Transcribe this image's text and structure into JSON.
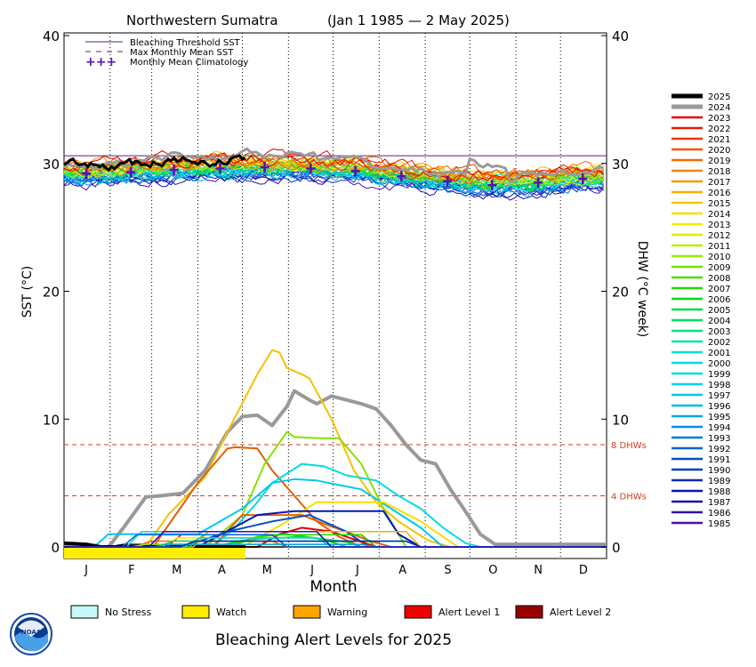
{
  "header": {
    "region": "Northwestern Sumatra",
    "date_range": "(Jan 1 1985 — 2 May 2025)"
  },
  "legend_top": [
    {
      "label": "Bleaching Threshold SST",
      "color": "#5b1f7a",
      "style": "solid"
    },
    {
      "label": "Max Monthly Mean SST",
      "color": "#5b1f7a",
      "style": "dashed"
    },
    {
      "label": "Monthly Mean Climatology",
      "color": "#5a0fb4",
      "style": "plus"
    }
  ],
  "alert_legend": {
    "items": [
      {
        "label": "No Stress",
        "color": "#c8f7f7"
      },
      {
        "label": "Watch",
        "color": "#ffee00"
      },
      {
        "label": "Warning",
        "color": "#ffa500"
      },
      {
        "label": "Alert Level 1",
        "color": "#ee0000"
      },
      {
        "label": "Alert Level 2",
        "color": "#990000"
      }
    ],
    "title": "Bleaching Alert Levels for 2025"
  },
  "logo_text": "NOAA",
  "chart_data": {
    "type": "line",
    "xlabel": "Month",
    "ylabel_left": "SST (°C)",
    "ylabel_right": "DHW (°C week)",
    "x_ticks": [
      "J",
      "F",
      "M",
      "A",
      "M",
      "J",
      "J",
      "A",
      "S",
      "O",
      "N",
      "D"
    ],
    "y_ticks": [
      "0",
      "10",
      "20",
      "30",
      "40"
    ],
    "y_ticks_right": [
      "0",
      "10",
      "20",
      "30",
      "40"
    ],
    "ylim": [
      0,
      40
    ],
    "xlim_days": [
      0,
      365
    ],
    "grid": "vertical dotted at month boundaries",
    "bleaching_threshold_sst": 30.6,
    "dhw_reference_lines": [
      {
        "value": 8,
        "label": "8 DHWs",
        "color": "#d04020"
      },
      {
        "value": 4,
        "label": "4 DHWs",
        "color": "#d04020"
      }
    ],
    "climatology": {
      "days": [
        15,
        45,
        74,
        105,
        135,
        166,
        196,
        227,
        258,
        288,
        319,
        349
      ],
      "values": [
        29.2,
        29.3,
        29.5,
        29.6,
        29.7,
        29.6,
        29.4,
        29.0,
        28.6,
        28.3,
        28.5,
        28.8
      ]
    },
    "years": [
      {
        "name": "2025",
        "color": "#000000"
      },
      {
        "name": "2024",
        "color": "#9a9a9a"
      },
      {
        "name": "2023",
        "color": "#e00000"
      },
      {
        "name": "2022",
        "color": "#e81a00"
      },
      {
        "name": "2021",
        "color": "#ee3300"
      },
      {
        "name": "2020",
        "color": "#f25500"
      },
      {
        "name": "2019",
        "color": "#f46a00"
      },
      {
        "name": "2018",
        "color": "#f58200"
      },
      {
        "name": "2017",
        "color": "#f59a00"
      },
      {
        "name": "2016",
        "color": "#f5b000"
      },
      {
        "name": "2015",
        "color": "#f5c800"
      },
      {
        "name": "2014",
        "color": "#f5e000"
      },
      {
        "name": "2013",
        "color": "#eef000"
      },
      {
        "name": "2012",
        "color": "#d8f000"
      },
      {
        "name": "2011",
        "color": "#b8ee00"
      },
      {
        "name": "2010",
        "color": "#98ea00"
      },
      {
        "name": "2009",
        "color": "#72e400"
      },
      {
        "name": "2008",
        "color": "#4ade00"
      },
      {
        "name": "2007",
        "color": "#22d800"
      },
      {
        "name": "2006",
        "color": "#00d81a"
      },
      {
        "name": "2005",
        "color": "#00dc44"
      },
      {
        "name": "2004",
        "color": "#00e064"
      },
      {
        "name": "2003",
        "color": "#00e288"
      },
      {
        "name": "2002",
        "color": "#00e4a6"
      },
      {
        "name": "2001",
        "color": "#00e4c2"
      },
      {
        "name": "2000",
        "color": "#00e0d8"
      },
      {
        "name": "1999",
        "color": "#00dae6"
      },
      {
        "name": "1998",
        "color": "#00d2ee"
      },
      {
        "name": "1997",
        "color": "#00c6f0"
      },
      {
        "name": "1996",
        "color": "#00b6f0"
      },
      {
        "name": "1995",
        "color": "#00a4ec"
      },
      {
        "name": "1994",
        "color": "#0090e6"
      },
      {
        "name": "1993",
        "color": "#007ade"
      },
      {
        "name": "1992",
        "color": "#0064d6"
      },
      {
        "name": "1991",
        "color": "#004ece"
      },
      {
        "name": "1990",
        "color": "#003cc6"
      },
      {
        "name": "1989",
        "color": "#002abe"
      },
      {
        "name": "1988",
        "color": "#0018b6"
      },
      {
        "name": "1987",
        "color": "#1a10b0"
      },
      {
        "name": "1986",
        "color": "#3010b0"
      },
      {
        "name": "1985",
        "color": "#4a10b4"
      }
    ],
    "dhw_series": [
      {
        "name": "2024",
        "color": "#999999",
        "width": 4,
        "days": [
          0,
          20,
          30,
          40,
          55,
          65,
          80,
          95,
          100,
          110,
          120,
          130,
          140,
          150,
          155,
          165,
          170,
          180,
          190,
          200,
          210,
          220,
          230,
          240,
          250,
          260,
          270,
          280,
          290,
          300,
          365
        ],
        "values": [
          0,
          0,
          0,
          1.5,
          3.9,
          4,
          4.2,
          6,
          7,
          9,
          10.2,
          10.3,
          9.5,
          11,
          12.2,
          11.5,
          11.2,
          11.8,
          11.5,
          11.2,
          10.8,
          9.5,
          8,
          6.8,
          6.5,
          4.5,
          2.8,
          1,
          0.2,
          0.2,
          0.2
        ]
      },
      {
        "name": "2016",
        "color": "#f5c000",
        "width": 2,
        "days": [
          0,
          55,
          70,
          95,
          110,
          130,
          140,
          145,
          150,
          160,
          165,
          180,
          195,
          210,
          225,
          245,
          260
        ],
        "values": [
          0,
          0,
          2.5,
          5.5,
          9,
          13.5,
          15.4,
          15.2,
          14,
          13.5,
          13.2,
          10,
          6,
          3.5,
          2,
          0.5,
          0
        ]
      },
      {
        "name": "2019",
        "color": "#e06000",
        "width": 2,
        "days": [
          0,
          60,
          90,
          110,
          115,
          130,
          140,
          155,
          170,
          185,
          200
        ],
        "values": [
          0,
          0,
          5,
          7.7,
          7.8,
          7.7,
          6,
          4,
          2,
          0.8,
          0
        ]
      },
      {
        "name": "2010",
        "color": "#88e000",
        "width": 2,
        "days": [
          0,
          95,
          120,
          135,
          150,
          155,
          170,
          185,
          200,
          215,
          230
        ],
        "values": [
          0,
          0,
          2.5,
          6.5,
          9,
          8.6,
          8.5,
          8.5,
          6.5,
          3,
          0
        ]
      },
      {
        "name": "1998",
        "color": "#00dddd",
        "width": 2,
        "days": [
          0,
          100,
          115,
          130,
          140,
          160,
          175,
          190,
          210,
          225,
          240,
          255,
          270,
          280
        ],
        "values": [
          0,
          0,
          1.5,
          3.5,
          5,
          6.5,
          6.3,
          5.6,
          5.2,
          4,
          3,
          1.5,
          0.3,
          0
        ]
      },
      {
        "name": "1996",
        "color": "#00c8ee",
        "width": 2,
        "days": [
          0,
          20,
          30,
          90,
          120,
          140,
          155,
          170,
          200,
          220,
          240,
          255
        ],
        "values": [
          0,
          0,
          1,
          1,
          3,
          5,
          5.3,
          5.2,
          4.5,
          3,
          1.5,
          0
        ]
      },
      {
        "name": "2015",
        "color": "#f5e000",
        "width": 2,
        "days": [
          0,
          120,
          150,
          170,
          195,
          215,
          240,
          265
        ],
        "values": [
          0,
          0,
          2,
          3.5,
          3.5,
          3.5,
          2,
          0
        ]
      },
      {
        "name": "2020",
        "color": "#e86000",
        "width": 2,
        "days": [
          0,
          100,
          120,
          140,
          160,
          175,
          190,
          205,
          220
        ],
        "values": [
          0,
          0,
          2.5,
          2.5,
          2.5,
          1.8,
          1.2,
          0.5,
          0
        ]
      },
      {
        "name": "1988",
        "color": "#0018b6",
        "width": 2,
        "days": [
          0,
          90,
          130,
          155,
          180,
          215,
          225,
          240
        ],
        "values": [
          0,
          0,
          2.5,
          2.8,
          2.8,
          2.8,
          1,
          0
        ]
      },
      {
        "name": "1991",
        "color": "#004ece",
        "width": 2,
        "days": [
          0,
          80,
          110,
          140,
          165,
          190,
          205
        ],
        "values": [
          0,
          0,
          1.2,
          2,
          2.5,
          1.2,
          0
        ]
      },
      {
        "name": "2023",
        "color": "#e00000",
        "width": 2,
        "days": [
          0,
          130,
          145,
          160,
          180,
          195,
          210
        ],
        "values": [
          0,
          0,
          1,
          1.5,
          1.2,
          0.6,
          0
        ]
      },
      {
        "name": "2007",
        "color": "#22d800",
        "width": 2,
        "days": [
          0,
          110,
          130,
          150,
          175,
          190
        ],
        "values": [
          0,
          0,
          0.8,
          1,
          0.6,
          0
        ]
      },
      {
        "name": "2005",
        "color": "#00dc44",
        "width": 2,
        "days": [
          0,
          100,
          125,
          160,
          190,
          200
        ],
        "values": [
          0,
          0,
          0.6,
          0.8,
          0.4,
          0
        ]
      },
      {
        "name": "2025",
        "color": "#000000",
        "width": 4,
        "days": [
          0,
          15,
          25,
          122
        ],
        "values": [
          0.3,
          0.2,
          0,
          0
        ]
      }
    ],
    "alert_bar_2025": [
      {
        "from_day": 0,
        "to_day": 122,
        "level": "Watch",
        "color": "#ffee00"
      }
    ]
  }
}
